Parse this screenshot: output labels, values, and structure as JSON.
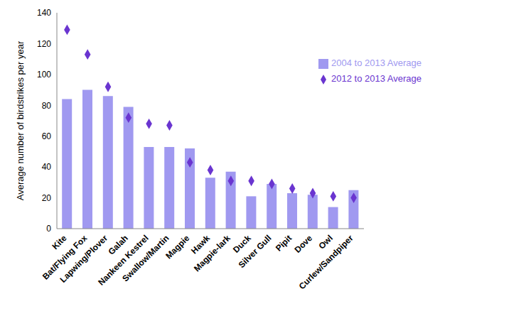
{
  "chart_data": {
    "type": "bar",
    "y_label": "Average number of birdstrikes per year",
    "categories": [
      "Kite",
      "Bat/Flying Fox",
      "Lapwing/Plover",
      "Galah",
      "Nankeen Kestrel",
      "Swallow/Martin",
      "Magpie",
      "Hawk",
      "Magpie-lark",
      "Duck",
      "Silver Gull",
      "Pipit",
      "Dove",
      "Owl",
      "Curlew/Sandpiper"
    ],
    "series": [
      {
        "name": "2004 to 2013 Average",
        "type": "bar",
        "color": "#a099f0",
        "values": [
          84,
          90,
          86,
          79,
          53,
          53,
          52,
          33,
          37,
          21,
          29,
          23,
          22,
          14,
          25
        ]
      },
      {
        "name": "2012 to 2013 Average",
        "type": "scatter",
        "marker": "diamond",
        "color": "#6a35d0",
        "values": [
          129,
          113,
          92,
          72,
          68,
          67,
          43,
          38,
          31,
          31,
          29,
          26,
          23,
          21,
          20
        ]
      }
    ],
    "ylim": [
      0,
      140
    ],
    "yticks": [
      0,
      20,
      40,
      60,
      80,
      100,
      120,
      140
    ],
    "grid": false,
    "legend": "upper right"
  }
}
